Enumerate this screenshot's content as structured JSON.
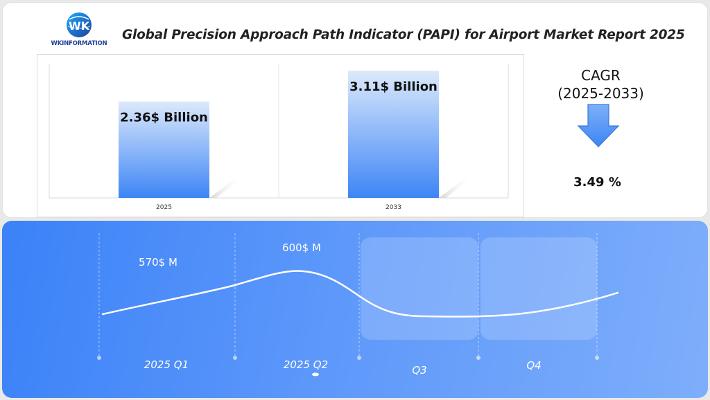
{
  "header": {
    "logo_text": "WKINFORMATION",
    "title": "Global Precision Approach Path Indicator (PAPI) for Airport Market Report 2025"
  },
  "cagr": {
    "title_line1": "CAGR",
    "title_line2": "(2025-2033)",
    "value": "3.49 %",
    "arrow_icon": "down-arrow-icon"
  },
  "colors": {
    "bar_top": "#dce9fb",
    "bar_bottom": "#3d85f6",
    "panel_start": "#3b82f8",
    "panel_end": "#7eaefb"
  },
  "chart_data": [
    {
      "type": "bar",
      "categories": [
        "2025",
        "2033"
      ],
      "values": [
        2.36,
        3.11
      ],
      "data_labels": [
        "2.36$ Billion",
        "3.11$ Billion"
      ],
      "ylim": [
        0,
        3.3
      ],
      "grid": false
    },
    {
      "type": "line",
      "categories": [
        "2025 Q1",
        "2025 Q2",
        "Q3",
        "Q4"
      ],
      "values": [
        570,
        600,
        null,
        null
      ],
      "data_labels": [
        "570$ M",
        "600$ M",
        "",
        ""
      ],
      "highlighted_categories": [
        "Q3",
        "Q4"
      ],
      "grid": false
    }
  ]
}
